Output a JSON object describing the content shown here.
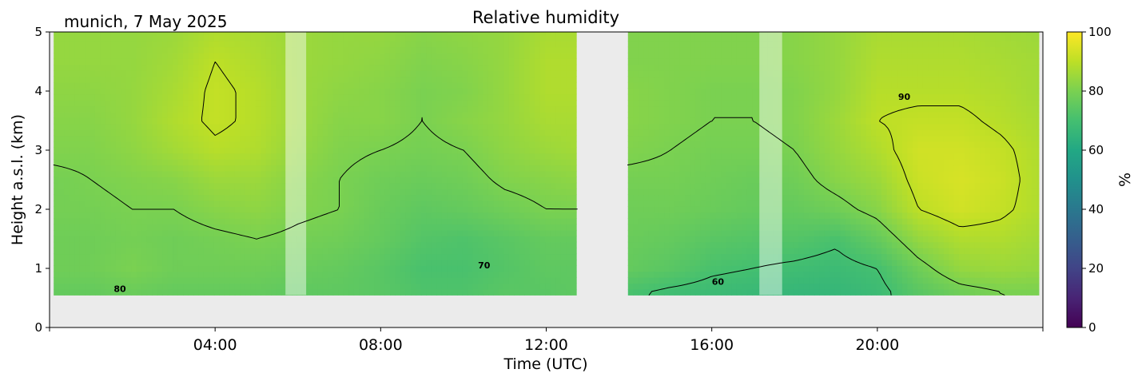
{
  "chart_data": {
    "type": "heatmap",
    "title": "Relative humidity",
    "subtitle": "munich, 7 May 2025",
    "xlabel": "Time (UTC)",
    "ylabel": "Height a.s.l. (km)",
    "xlim": [
      0,
      24
    ],
    "ylim": [
      0,
      5
    ],
    "x_tick_values": [
      4,
      8,
      12,
      16,
      20
    ],
    "x_tick_labels": [
      "04:00",
      "08:00",
      "12:00",
      "16:00",
      "20:00"
    ],
    "y_ticks": [
      0,
      1,
      2,
      3,
      4,
      5
    ],
    "colorbar": {
      "label": "%",
      "min": 0,
      "max": 100,
      "ticks": [
        0,
        20,
        40,
        60,
        80,
        100
      ],
      "colormap": "viridis"
    },
    "contour_levels": [
      60,
      70,
      80,
      90
    ],
    "contour_labels": [
      {
        "text": "80",
        "x": 1.7,
        "y": 0.6
      },
      {
        "text": "70",
        "x": 10.5,
        "y": 1.0
      },
      {
        "text": "60",
        "x": 16.15,
        "y": 0.72
      },
      {
        "text": "90",
        "x": 20.65,
        "y": 3.85
      }
    ],
    "data_bottom_km": 0.55,
    "no_data_periods": [
      [
        12.75,
        13.97
      ]
    ],
    "masked_periods": [
      [
        5.7,
        6.2
      ],
      [
        17.15,
        17.7
      ]
    ],
    "colors": {
      "no_data": "#ebebeb",
      "contour_line": "#000000",
      "masked_overlay": "#ffffff"
    },
    "rh_field": {
      "times_h": [
        0.1,
        1,
        2,
        3,
        4,
        5,
        6,
        7,
        8,
        9,
        10,
        11,
        12,
        12.75,
        13.97,
        15,
        16,
        17,
        18,
        19,
        20,
        21,
        22,
        23,
        23.9
      ],
      "heights_km": [
        0.6,
        1.0,
        1.5,
        2.0,
        2.5,
        3.0,
        3.5,
        4.0,
        4.5,
        5.0
      ],
      "values": [
        [
          76,
          76,
          77,
          76,
          76,
          76,
          75,
          75,
          74,
          72,
          72,
          74,
          74,
          75,
          71,
          69,
          68,
          67,
          66,
          66,
          68,
          74,
          78,
          80,
          80
        ],
        [
          78,
          78,
          80,
          78,
          78,
          78,
          77,
          76,
          74,
          71,
          71,
          73,
          75,
          75,
          76,
          74,
          71,
          70,
          69,
          68,
          70,
          78,
          84,
          85,
          84
        ],
        [
          78,
          78,
          79,
          78,
          79,
          80,
          79,
          78,
          76,
          73,
          72,
          74,
          76,
          76,
          77,
          76,
          74,
          73,
          73,
          71,
          76,
          84,
          88,
          88,
          86
        ],
        [
          79,
          79,
          80,
          80,
          82,
          83,
          81,
          80,
          77,
          75,
          76,
          78,
          80,
          80,
          78,
          78,
          77,
          76,
          76,
          78,
          82,
          90,
          93,
          91,
          88
        ],
        [
          79,
          80,
          81,
          82,
          85,
          85,
          82,
          80,
          78,
          77,
          78,
          81,
          82,
          83,
          79,
          79,
          78,
          77,
          78,
          82,
          85,
          92,
          94,
          92,
          88
        ],
        [
          81,
          81,
          83,
          86,
          89,
          88,
          84,
          81,
          80,
          79,
          80,
          83,
          85,
          86,
          81,
          80,
          79,
          79,
          80,
          84,
          88,
          93,
          93,
          91,
          88
        ],
        [
          82,
          82,
          84,
          88,
          91,
          89,
          85,
          82,
          82,
          80,
          82,
          84,
          87,
          87,
          82,
          81,
          80,
          80,
          81,
          85,
          90,
          91,
          91,
          89,
          87
        ],
        [
          83,
          83,
          84,
          87,
          91,
          89,
          85,
          83,
          82,
          80,
          81,
          84,
          88,
          88,
          82,
          81,
          80,
          80,
          81,
          84,
          89,
          89,
          89,
          88,
          86
        ],
        [
          84,
          84,
          84,
          86,
          90,
          88,
          85,
          84,
          83,
          81,
          82,
          84,
          88,
          88,
          81,
          81,
          81,
          81,
          82,
          84,
          88,
          88,
          88,
          87,
          86
        ],
        [
          84,
          84,
          84,
          85,
          88,
          87,
          85,
          84,
          84,
          82,
          83,
          84,
          87,
          87,
          81,
          81,
          81,
          81,
          82,
          84,
          87,
          87,
          87,
          86,
          85
        ]
      ]
    }
  }
}
